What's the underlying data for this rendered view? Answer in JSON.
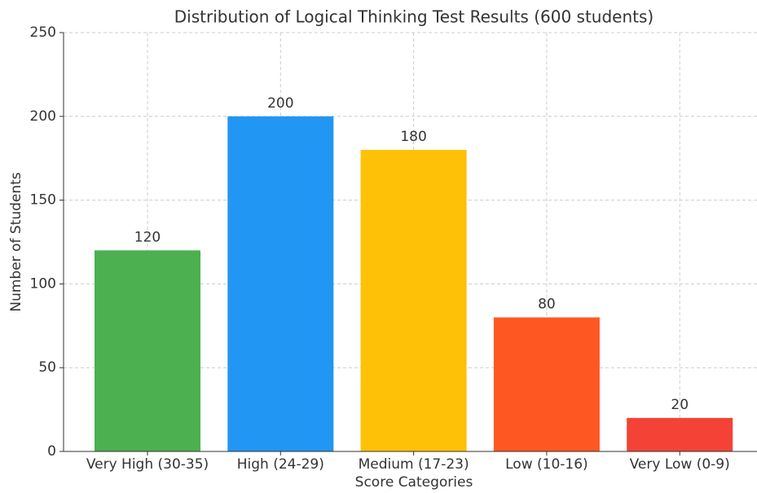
{
  "chart_data": {
    "type": "bar",
    "title": "Distribution of Logical Thinking Test Results (600 students)",
    "xlabel": "Score Categories",
    "ylabel": "Number of Students",
    "categories": [
      "Very High (30-35)",
      "High (24-29)",
      "Medium (17-23)",
      "Low (10-16)",
      "Very Low (0-9)"
    ],
    "values": [
      120,
      200,
      180,
      80,
      20
    ],
    "colors": [
      "#4caf50",
      "#2196f3",
      "#ffc107",
      "#ff5722",
      "#f44336"
    ],
    "ylim": [
      0,
      250
    ],
    "yticks": [
      0,
      50,
      100,
      150,
      200,
      250
    ],
    "grid": true
  }
}
